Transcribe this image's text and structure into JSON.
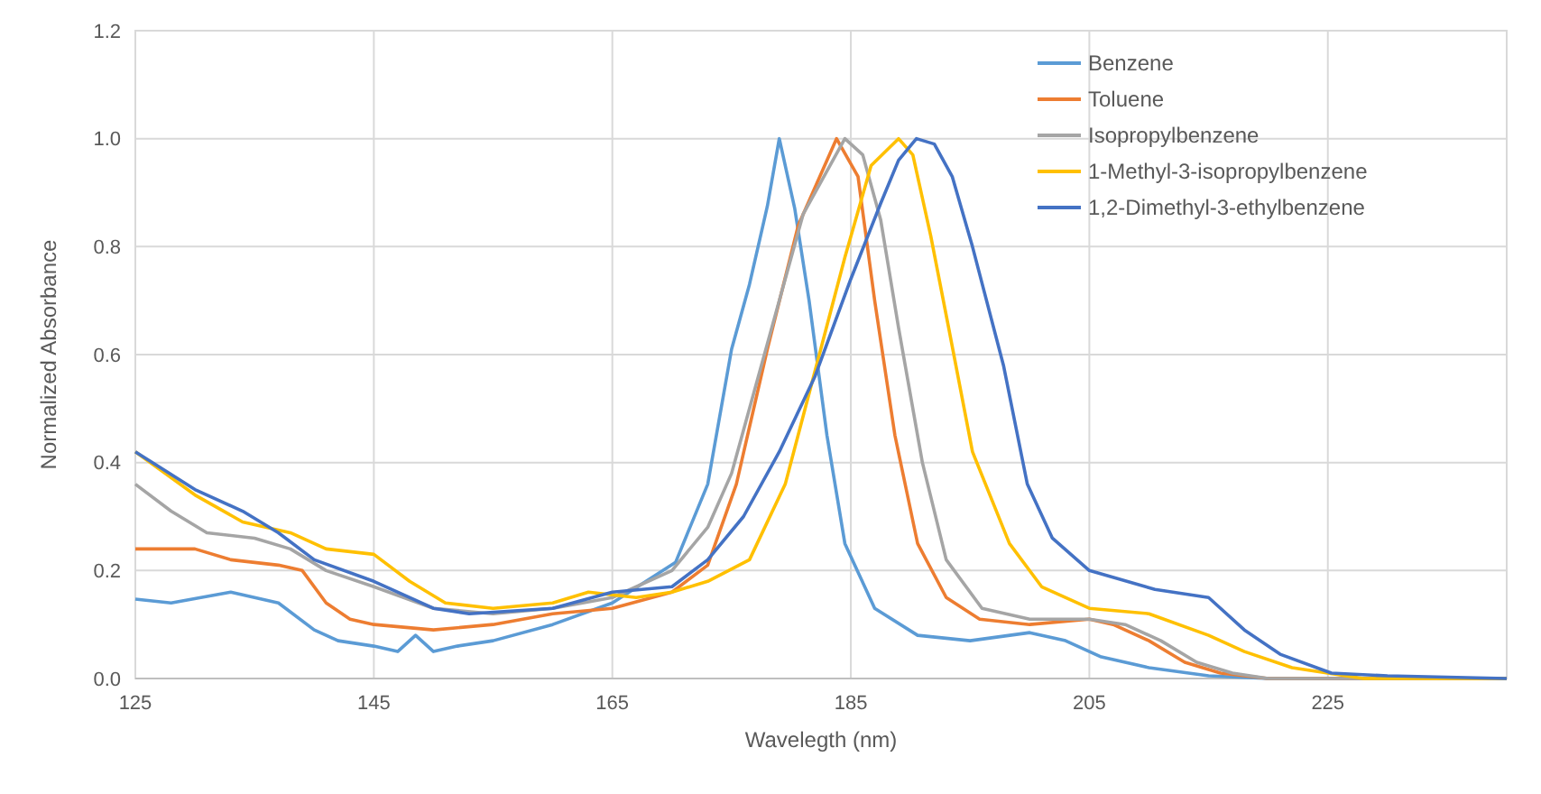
{
  "chart_data": {
    "type": "line",
    "xlabel": "Wavelegth (nm)",
    "ylabel": "Normalized Absorbance",
    "xlim": [
      125,
      240
    ],
    "xticks": [
      125,
      145,
      165,
      185,
      205,
      225
    ],
    "ylim": [
      0,
      1.2
    ],
    "yticks": [
      {
        "value": 0,
        "label": "0.0"
      },
      0.2,
      0.4,
      0.6,
      0.8,
      {
        "value": 1,
        "label": "1.0"
      },
      {
        "value": 1.2,
        "label": "1.2"
      }
    ],
    "grid": true,
    "legend": "top right",
    "line_style": "solid",
    "series": [
      {
        "name": "Benzene",
        "color": "#5b9bd5",
        "x": [
          125,
          128,
          133,
          137,
          140,
          142,
          145,
          147,
          148.5,
          150,
          152,
          155,
          160,
          165,
          170.3,
          173,
          175,
          176.5,
          178,
          179,
          180.3,
          181.5,
          183,
          184.5,
          187,
          190.6,
          195,
          200,
          203,
          206,
          210,
          215,
          220,
          240
        ],
        "values": [
          0.147,
          0.14,
          0.16,
          0.14,
          0.09,
          0.07,
          0.06,
          0.05,
          0.08,
          0.05,
          0.06,
          0.07,
          0.1,
          0.14,
          0.215,
          0.36,
          0.61,
          0.73,
          0.875,
          1.0,
          0.87,
          0.7,
          0.45,
          0.25,
          0.13,
          0.08,
          0.07,
          0.085,
          0.07,
          0.04,
          0.02,
          0.005,
          0,
          0
        ]
      },
      {
        "name": "Toluene",
        "color": "#ed7d31",
        "x": [
          125,
          130,
          133,
          137,
          139,
          141,
          143,
          145,
          150,
          155,
          160,
          165,
          170,
          173,
          175.4,
          178,
          180.6,
          183.8,
          185.6,
          187,
          188.7,
          190.6,
          193,
          195.8,
          200,
          205,
          207,
          210,
          213,
          216,
          220,
          240
        ],
        "values": [
          0.24,
          0.24,
          0.22,
          0.21,
          0.2,
          0.14,
          0.11,
          0.1,
          0.09,
          0.1,
          0.12,
          0.13,
          0.16,
          0.21,
          0.36,
          0.61,
          0.84,
          1.0,
          0.93,
          0.7,
          0.45,
          0.25,
          0.15,
          0.11,
          0.1,
          0.11,
          0.1,
          0.07,
          0.03,
          0.01,
          0,
          0
        ]
      },
      {
        "name": "Isopropylbenzene",
        "color": "#a5a5a5",
        "x": [
          125,
          128,
          131,
          135,
          138,
          141,
          145,
          150,
          155,
          160,
          165,
          170,
          173,
          175,
          178,
          181,
          184.5,
          186,
          187.5,
          189,
          191,
          193,
          196,
          200,
          205,
          208,
          211,
          214,
          217,
          220,
          240
        ],
        "values": [
          0.36,
          0.31,
          0.27,
          0.26,
          0.24,
          0.2,
          0.17,
          0.13,
          0.12,
          0.13,
          0.15,
          0.2,
          0.28,
          0.38,
          0.62,
          0.86,
          1.0,
          0.97,
          0.85,
          0.65,
          0.4,
          0.22,
          0.13,
          0.11,
          0.11,
          0.1,
          0.07,
          0.03,
          0.01,
          0,
          0
        ]
      },
      {
        "name": "1-Methyl-3-isopropylbenzene",
        "color": "#ffc000",
        "x": [
          125,
          130,
          134,
          138,
          141,
          145,
          148,
          151,
          155,
          160,
          163,
          167,
          170,
          173,
          176.5,
          179.5,
          182,
          184.5,
          186.7,
          189,
          190.2,
          191.7,
          193.2,
          195.2,
          198.3,
          201,
          205,
          210,
          215,
          218,
          222,
          228,
          240
        ],
        "values": [
          0.42,
          0.34,
          0.29,
          0.27,
          0.24,
          0.23,
          0.18,
          0.14,
          0.13,
          0.14,
          0.16,
          0.15,
          0.16,
          0.18,
          0.22,
          0.36,
          0.57,
          0.78,
          0.95,
          1.0,
          0.97,
          0.82,
          0.65,
          0.42,
          0.25,
          0.17,
          0.13,
          0.12,
          0.08,
          0.05,
          0.02,
          0,
          0
        ]
      },
      {
        "name": "1,2-Dimethyl-3-ethylbenzene",
        "color": "#4472c4",
        "x": [
          125,
          130,
          134,
          137,
          140,
          145,
          150,
          153,
          160,
          165,
          170,
          173,
          176,
          179,
          182,
          185,
          187.5,
          189,
          190.5,
          192,
          193.5,
          195.2,
          197.8,
          199.8,
          201.9,
          205,
          210.5,
          215,
          218,
          221,
          225.3,
          230,
          240
        ],
        "values": [
          0.42,
          0.35,
          0.31,
          0.27,
          0.22,
          0.18,
          0.13,
          0.12,
          0.13,
          0.16,
          0.17,
          0.22,
          0.3,
          0.42,
          0.56,
          0.74,
          0.88,
          0.96,
          1.0,
          0.99,
          0.93,
          0.8,
          0.58,
          0.36,
          0.26,
          0.2,
          0.165,
          0.15,
          0.09,
          0.045,
          0.01,
          0.005,
          0
        ]
      }
    ]
  }
}
